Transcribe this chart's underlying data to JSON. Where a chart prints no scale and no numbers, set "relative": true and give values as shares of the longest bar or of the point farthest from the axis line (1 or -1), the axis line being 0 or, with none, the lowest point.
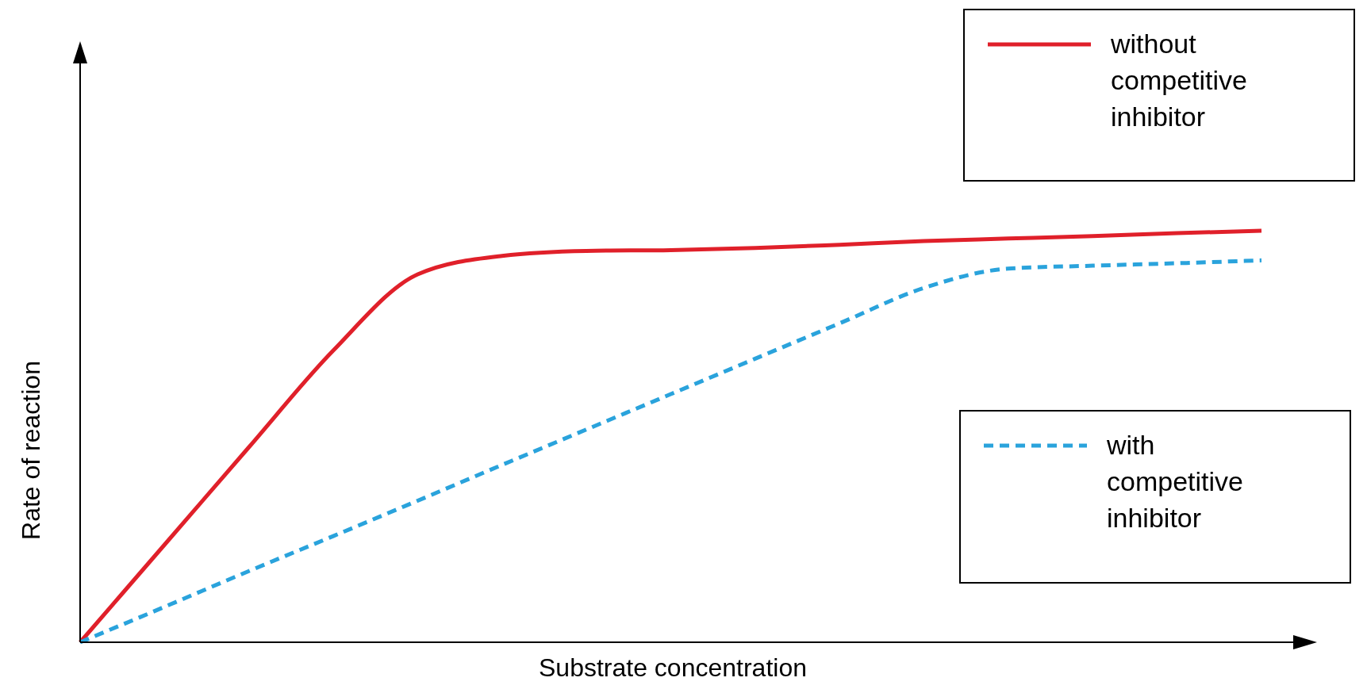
{
  "chart_data": {
    "type": "line",
    "relative": true,
    "xlabel": "Substrate concentration",
    "ylabel": "Rate of reaction",
    "legend": "right",
    "marker": "none",
    "categories": [
      null,
      null,
      null,
      null,
      null,
      null,
      null,
      null,
      null,
      null,
      null,
      null,
      null,
      null,
      null
    ],
    "series": [
      {
        "name": "without competitive inhibitor",
        "color": "#e0202a",
        "line_style": "solid",
        "values": [
          0,
          0.237,
          0.474,
          0.709,
          0.894,
          0.939,
          0.951,
          0.953,
          0.958,
          0.966,
          0.975,
          0.981,
          0.987,
          0.994,
          1
        ]
      },
      {
        "name": "with competitive inhibitor",
        "color": "#2aa3dc",
        "line_style": "dashed",
        "values": [
          0,
          0.086,
          0.173,
          0.258,
          0.344,
          0.431,
          0.517,
          0.603,
          0.689,
          0.775,
          0.861,
          0.908,
          0.915,
          0.921,
          0.928
        ]
      }
    ]
  }
}
